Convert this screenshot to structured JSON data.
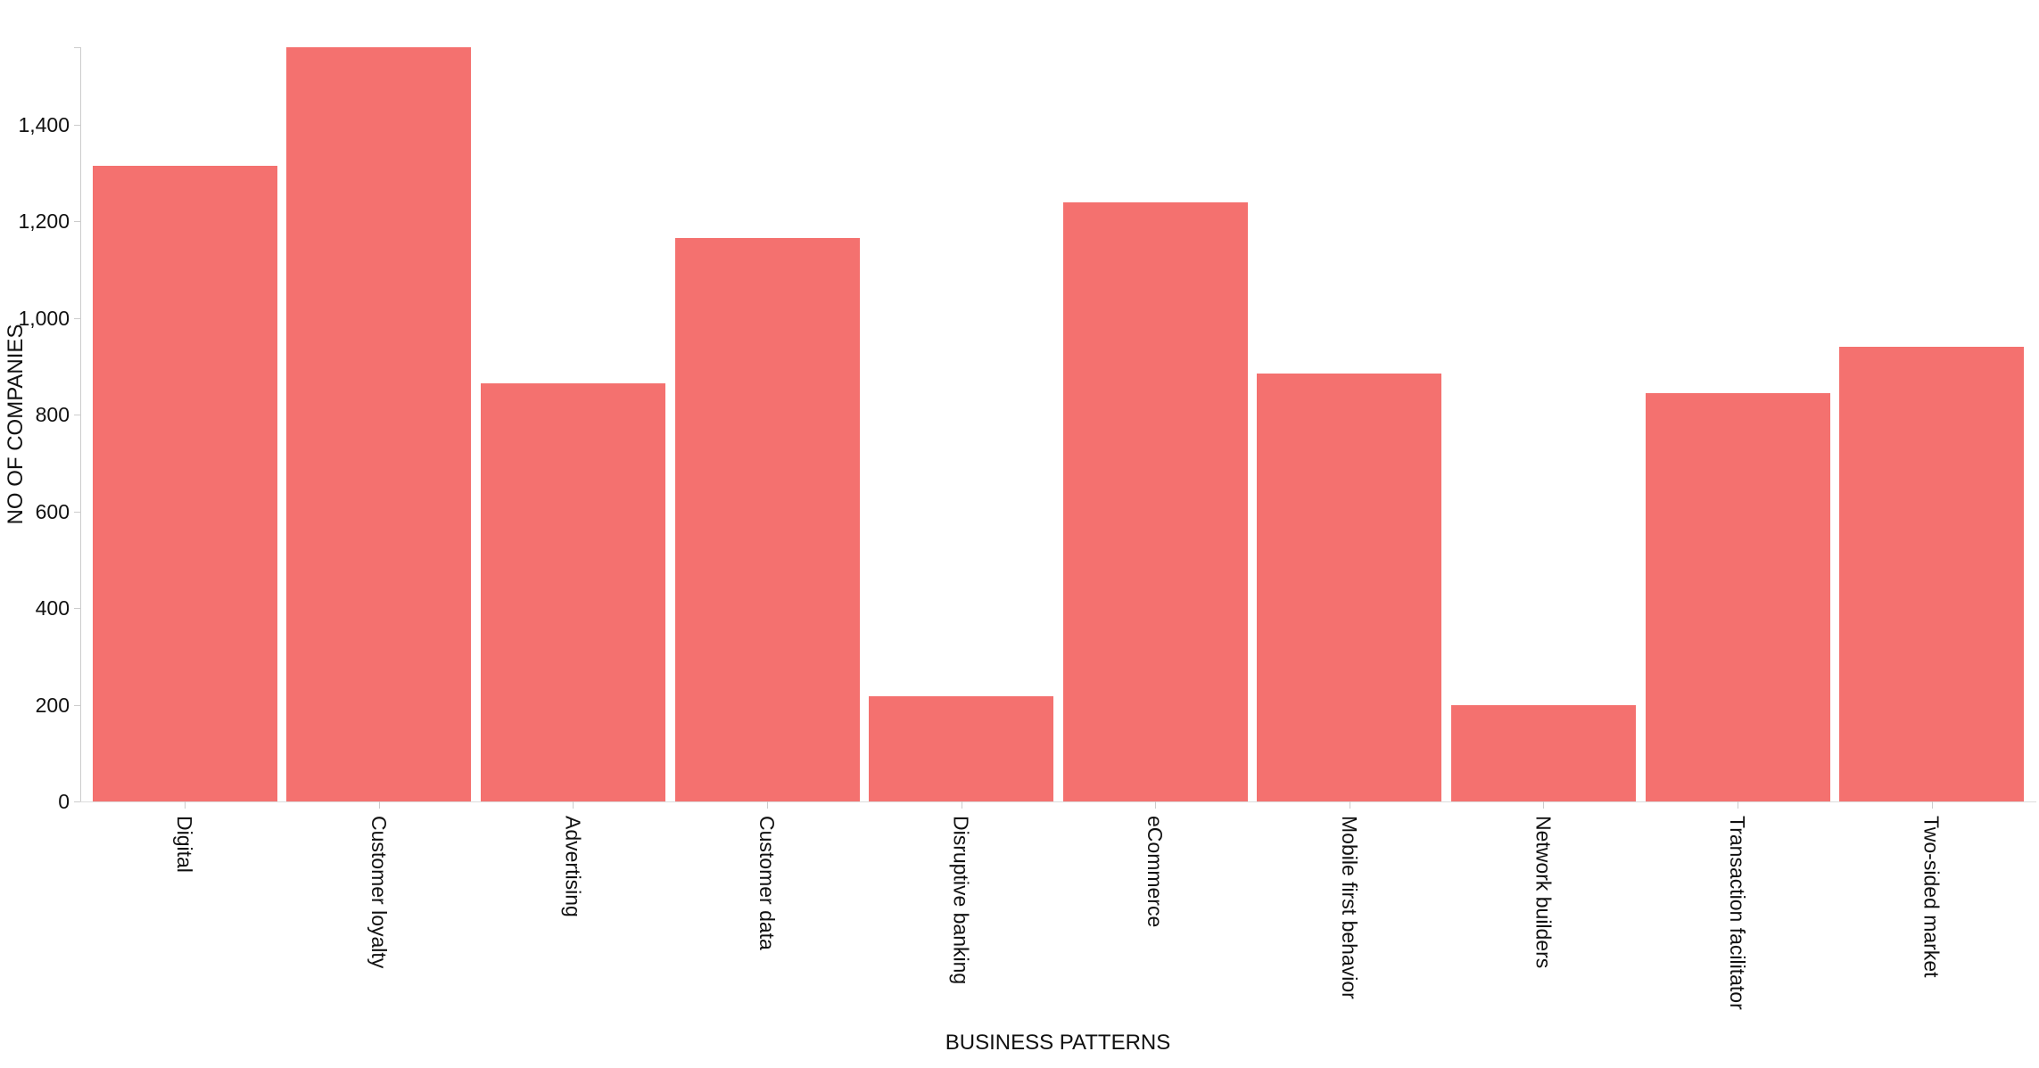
{
  "chart_data": {
    "type": "bar",
    "title": "",
    "xlabel": "BUSINESS PATTERNS",
    "ylabel": "NO OF COMPANIES",
    "categories": [
      "Digital",
      "Customer loyalty",
      "Advertising",
      "Customer data",
      "Disruptive banking",
      "eCommerce",
      "Mobile first behavior",
      "Network builders",
      "Transaction facilitator",
      "Two-sided market"
    ],
    "values": [
      1315,
      1560,
      865,
      1165,
      218,
      1240,
      885,
      200,
      845,
      940
    ],
    "ylim": [
      0,
      1560
    ],
    "yticks": [
      0,
      200,
      400,
      600,
      800,
      1000,
      1200,
      1400
    ],
    "ytick_labels": [
      "0",
      "200",
      "400",
      "600",
      "800",
      "1,000",
      "1,200",
      "1,400"
    ],
    "grid": "off",
    "legend": "none",
    "bar_color": "#f4716f",
    "axis_color": "#cccccc",
    "text_color": "#111111",
    "background_color": "#ffffff"
  }
}
